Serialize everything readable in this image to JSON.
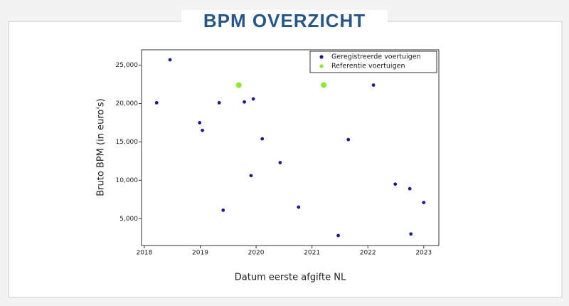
{
  "chart_data": {
    "type": "scatter",
    "title": "BPM OVERZICHT",
    "x_label": "Datum eerste afgifte NL",
    "y_label": "Bruto BPM (in euro's)",
    "series": [
      {
        "name": "Geregistreerde voertuigen",
        "color": "#1c1c8a",
        "x": [
          2018.22,
          2018.46,
          2018.99,
          2019.04,
          2019.34,
          2019.41,
          2019.79,
          2019.91,
          2019.95,
          2020.11,
          2020.43,
          2020.76,
          2021.47,
          2021.65,
          2022.1,
          2022.49,
          2022.75,
          2022.77,
          2023.0
        ],
        "values": [
          20100,
          25700,
          17500,
          16500,
          20100,
          6100,
          20200,
          10600,
          20600,
          15400,
          12300,
          6500,
          2800,
          15300,
          22400,
          9500,
          8900,
          3000,
          7100
        ]
      },
      {
        "name": "Referentie voertuigen",
        "color": "#8fe832",
        "x": [
          2019.69,
          2021.21
        ],
        "values": [
          22400,
          22400
        ]
      }
    ],
    "xlim": [
      2017.95,
      2023.27
    ],
    "xticks": [
      2018,
      2019,
      2020,
      2021,
      2022,
      2023
    ],
    "ylim": [
      1500,
      27000
    ],
    "yticks": [
      {
        "value": 5000,
        "label": "5,000"
      },
      {
        "value": 10000,
        "label": "10,000"
      },
      {
        "value": 15000,
        "label": "15,000"
      },
      {
        "value": 20000,
        "label": "20,000"
      },
      {
        "value": 25000,
        "label": "25,000"
      }
    ],
    "legend": "upper right"
  }
}
